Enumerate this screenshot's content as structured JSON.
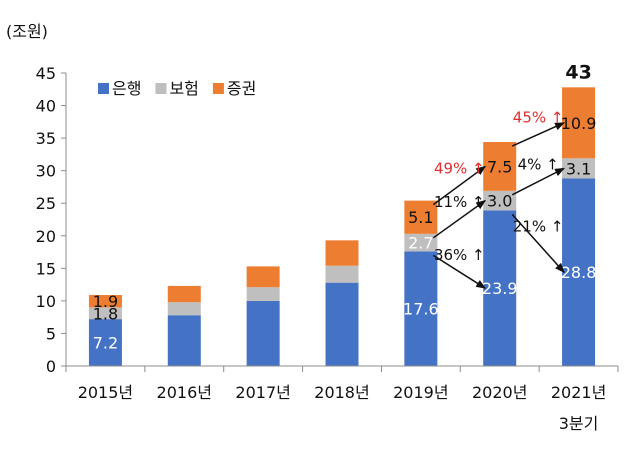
{
  "chart_data": {
    "type": "bar",
    "stacked": true,
    "unit_label": "(조원)",
    "categories": [
      "2015년",
      "2016년",
      "2017년",
      "2018년",
      "2019년",
      "2020년",
      "2021년"
    ],
    "category_sublabels": [
      "",
      "",
      "",
      "",
      "",
      "",
      "3분기"
    ],
    "ylim": [
      0,
      45
    ],
    "yticks": [
      0,
      5,
      10,
      15,
      20,
      25,
      30,
      35,
      40,
      45
    ],
    "grid": false,
    "legend_position": "top-left",
    "series": [
      {
        "name": "은행",
        "color": "#4472C4",
        "values": [
          7.2,
          7.8,
          10.0,
          12.8,
          17.6,
          23.9,
          28.8
        ]
      },
      {
        "name": "보험",
        "color": "#BFBFBF",
        "values": [
          1.8,
          2.0,
          2.1,
          2.6,
          2.7,
          3.0,
          3.1
        ]
      },
      {
        "name": "증권",
        "color": "#ED7D31",
        "values": [
          1.9,
          2.5,
          3.2,
          3.9,
          5.1,
          7.5,
          10.9
        ]
      }
    ],
    "data_labels": [
      {
        "cat": 0,
        "series": 0,
        "text": "7.2",
        "color": "#ffffff"
      },
      {
        "cat": 0,
        "series": 1,
        "text": "1.8",
        "color": "#111111"
      },
      {
        "cat": 0,
        "series": 2,
        "text": "1.9",
        "color": "#111111"
      },
      {
        "cat": 4,
        "series": 0,
        "text": "17.6",
        "color": "#ffffff"
      },
      {
        "cat": 4,
        "series": 1,
        "text": "2.7",
        "color": "#ffffff"
      },
      {
        "cat": 4,
        "series": 2,
        "text": "5.1",
        "color": "#111111"
      },
      {
        "cat": 5,
        "series": 0,
        "text": "23.9",
        "color": "#ffffff"
      },
      {
        "cat": 5,
        "series": 1,
        "text": "3.0",
        "color": "#111111"
      },
      {
        "cat": 5,
        "series": 2,
        "text": "7.5",
        "color": "#111111"
      },
      {
        "cat": 6,
        "series": 0,
        "text": "28.8",
        "color": "#ffffff"
      },
      {
        "cat": 6,
        "series": 1,
        "text": "3.1",
        "color": "#111111"
      },
      {
        "cat": 6,
        "series": 2,
        "text": "10.9",
        "color": "#111111"
      }
    ],
    "total_label": {
      "cat": 6,
      "text": "43"
    },
    "growth_annotations": [
      {
        "series": 0,
        "from_cat": 4,
        "to_cat": 5,
        "text": "36% ↑",
        "color": "#111111"
      },
      {
        "series": 0,
        "from_cat": 5,
        "to_cat": 6,
        "text": "21% ↑",
        "color": "#111111"
      },
      {
        "series": 1,
        "from_cat": 4,
        "to_cat": 5,
        "text": "11% ↑",
        "color": "#111111"
      },
      {
        "series": 1,
        "from_cat": 5,
        "to_cat": 6,
        "text": "4% ↑",
        "color": "#111111"
      },
      {
        "series": 2,
        "from_cat": 4,
        "to_cat": 5,
        "text": "49% ↑",
        "color": "#E03030"
      },
      {
        "series": 2,
        "from_cat": 5,
        "to_cat": 6,
        "text": "45% ↑",
        "color": "#E03030"
      }
    ]
  }
}
